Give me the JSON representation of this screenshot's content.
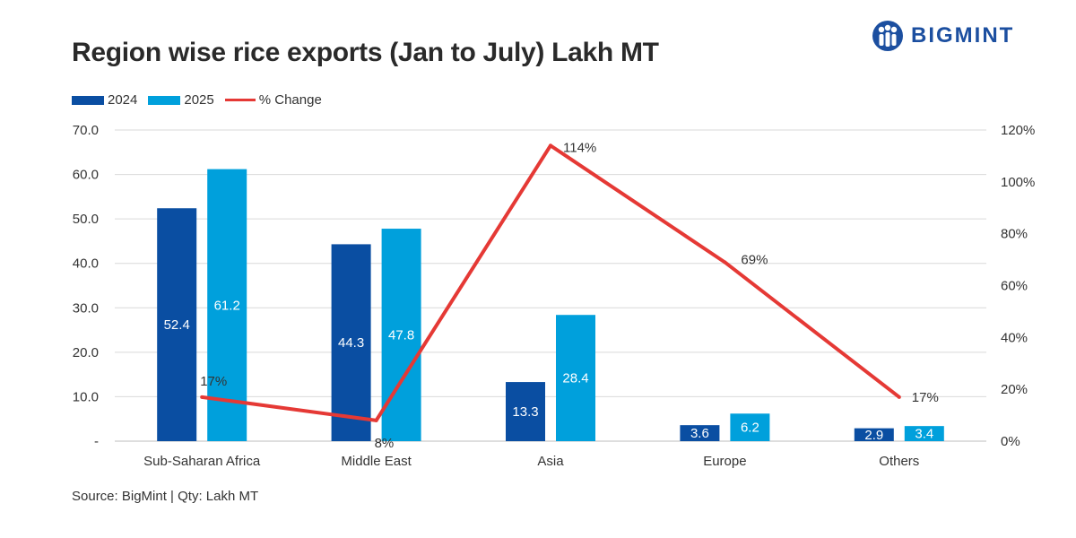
{
  "title": "Region wise rice exports (Jan to July) Lakh MT",
  "logo": {
    "text": "BIGMINT",
    "color": "#1c4fa0"
  },
  "source": "Source: BigMint | Qty: Lakh MT",
  "chart_data": {
    "type": "bar",
    "categories": [
      "Sub-Saharan Africa",
      "Middle East",
      "Asia",
      "Europe",
      "Others"
    ],
    "series": [
      {
        "name": "2024",
        "type": "bar",
        "axis": "left",
        "color": "#0a4ea2",
        "values": [
          52.4,
          44.3,
          13.3,
          3.6,
          2.9
        ],
        "labels": [
          "52.4",
          "44.3",
          "13.3",
          "3.6",
          "2.9"
        ]
      },
      {
        "name": "2025",
        "type": "bar",
        "axis": "left",
        "color": "#00a0dc",
        "values": [
          61.2,
          47.8,
          28.4,
          6.2,
          3.4
        ],
        "labels": [
          "61.2",
          "47.8",
          "28.4",
          "6.2",
          "3.4"
        ]
      },
      {
        "name": "% Change",
        "type": "line",
        "axis": "right",
        "color": "#e53935",
        "values": [
          17,
          8,
          114,
          69,
          17
        ],
        "labels": [
          "17%",
          "8%",
          "114%",
          "69%",
          "17%"
        ]
      }
    ],
    "y_left": {
      "range": [
        0,
        70
      ],
      "tick_values": [
        0,
        10,
        20,
        30,
        40,
        50,
        60,
        70
      ],
      "tick_labels": [
        "-",
        "10.0",
        "20.0",
        "30.0",
        "40.0",
        "50.0",
        "60.0",
        "70.0"
      ]
    },
    "y_right": {
      "range": [
        0,
        120
      ],
      "tick_values": [
        0,
        20,
        40,
        60,
        80,
        100,
        120
      ],
      "tick_labels": [
        "0%",
        "20%",
        "40%",
        "60%",
        "80%",
        "100%",
        "120%"
      ]
    },
    "grid": true,
    "legend_position": "top-left"
  }
}
